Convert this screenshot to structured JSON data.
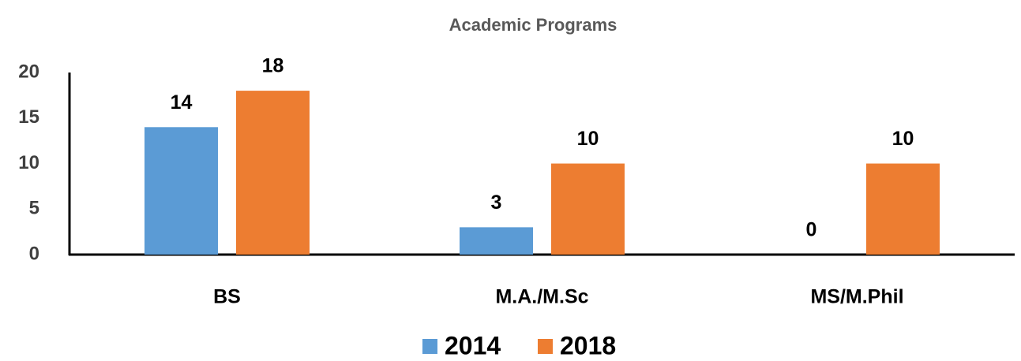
{
  "chart_data": {
    "type": "bar",
    "title": "Academic Programs",
    "categories": [
      "BS",
      "M.A./M.Sc",
      "MS/M.Phil"
    ],
    "series": [
      {
        "name": "2014",
        "color": "#5b9bd5",
        "values": [
          14,
          3,
          0
        ]
      },
      {
        "name": "2018",
        "color": "#ed7d31",
        "values": [
          18,
          10,
          10
        ]
      }
    ],
    "ylim": [
      0,
      20
    ],
    "yticks": [
      0,
      5,
      10,
      15,
      20
    ],
    "grid": false,
    "legend": "bottom"
  }
}
